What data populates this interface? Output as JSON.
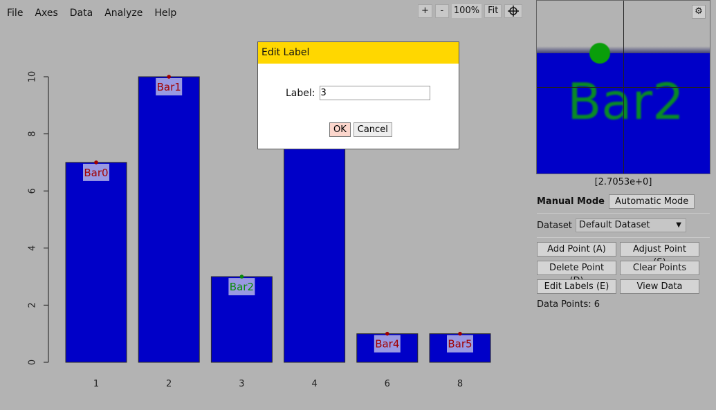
{
  "menu": [
    "File",
    "Axes",
    "Data",
    "Analyze",
    "Help"
  ],
  "zoom_toolbar": {
    "zoom_in": "+",
    "zoom_out": "-",
    "zoom_level": "100%",
    "fit": "Fit",
    "crosshair_icon": "crosshair-icon"
  },
  "chart_data": {
    "type": "bar",
    "categories": [
      "1",
      "2",
      "3",
      "4",
      "6",
      "8"
    ],
    "values": [
      7,
      10,
      3,
      10,
      1,
      1
    ],
    "ylim": [
      0,
      10
    ],
    "yticks": [
      0,
      2,
      4,
      6,
      8,
      10
    ],
    "bar_color": "#0000c8",
    "point_labels": [
      {
        "bar": 0,
        "label": "Bar0",
        "value": 7,
        "color": "#a00000"
      },
      {
        "bar": 1,
        "label": "Bar1",
        "value": 10,
        "color": "#a00000"
      },
      {
        "bar": 2,
        "label": "Bar2",
        "value": 3,
        "color": "#0a8a0a"
      },
      {
        "bar": 4,
        "label": "Bar4",
        "value": 1,
        "color": "#a00000"
      },
      {
        "bar": 5,
        "label": "Bar5",
        "value": 1,
        "color": "#a00000"
      }
    ]
  },
  "zoom_view": {
    "label": "Bar2",
    "readout": "[2.7053e+0]"
  },
  "panel": {
    "manual_mode": "Manual Mode",
    "automatic_mode": "Automatic Mode",
    "dataset_label": "Dataset",
    "dataset_value": "Default Dataset",
    "add_point": "Add Point (A)",
    "adjust_point": "Adjust Point (S)",
    "delete_point": "Delete Point (D)",
    "clear_points": "Clear Points",
    "edit_labels": "Edit Labels (E)",
    "view_data": "View Data",
    "data_points": "Data Points: 6"
  },
  "dialog": {
    "title": "Edit Label",
    "field_label": "Label:",
    "field_value": "3",
    "ok": "OK",
    "cancel": "Cancel"
  }
}
